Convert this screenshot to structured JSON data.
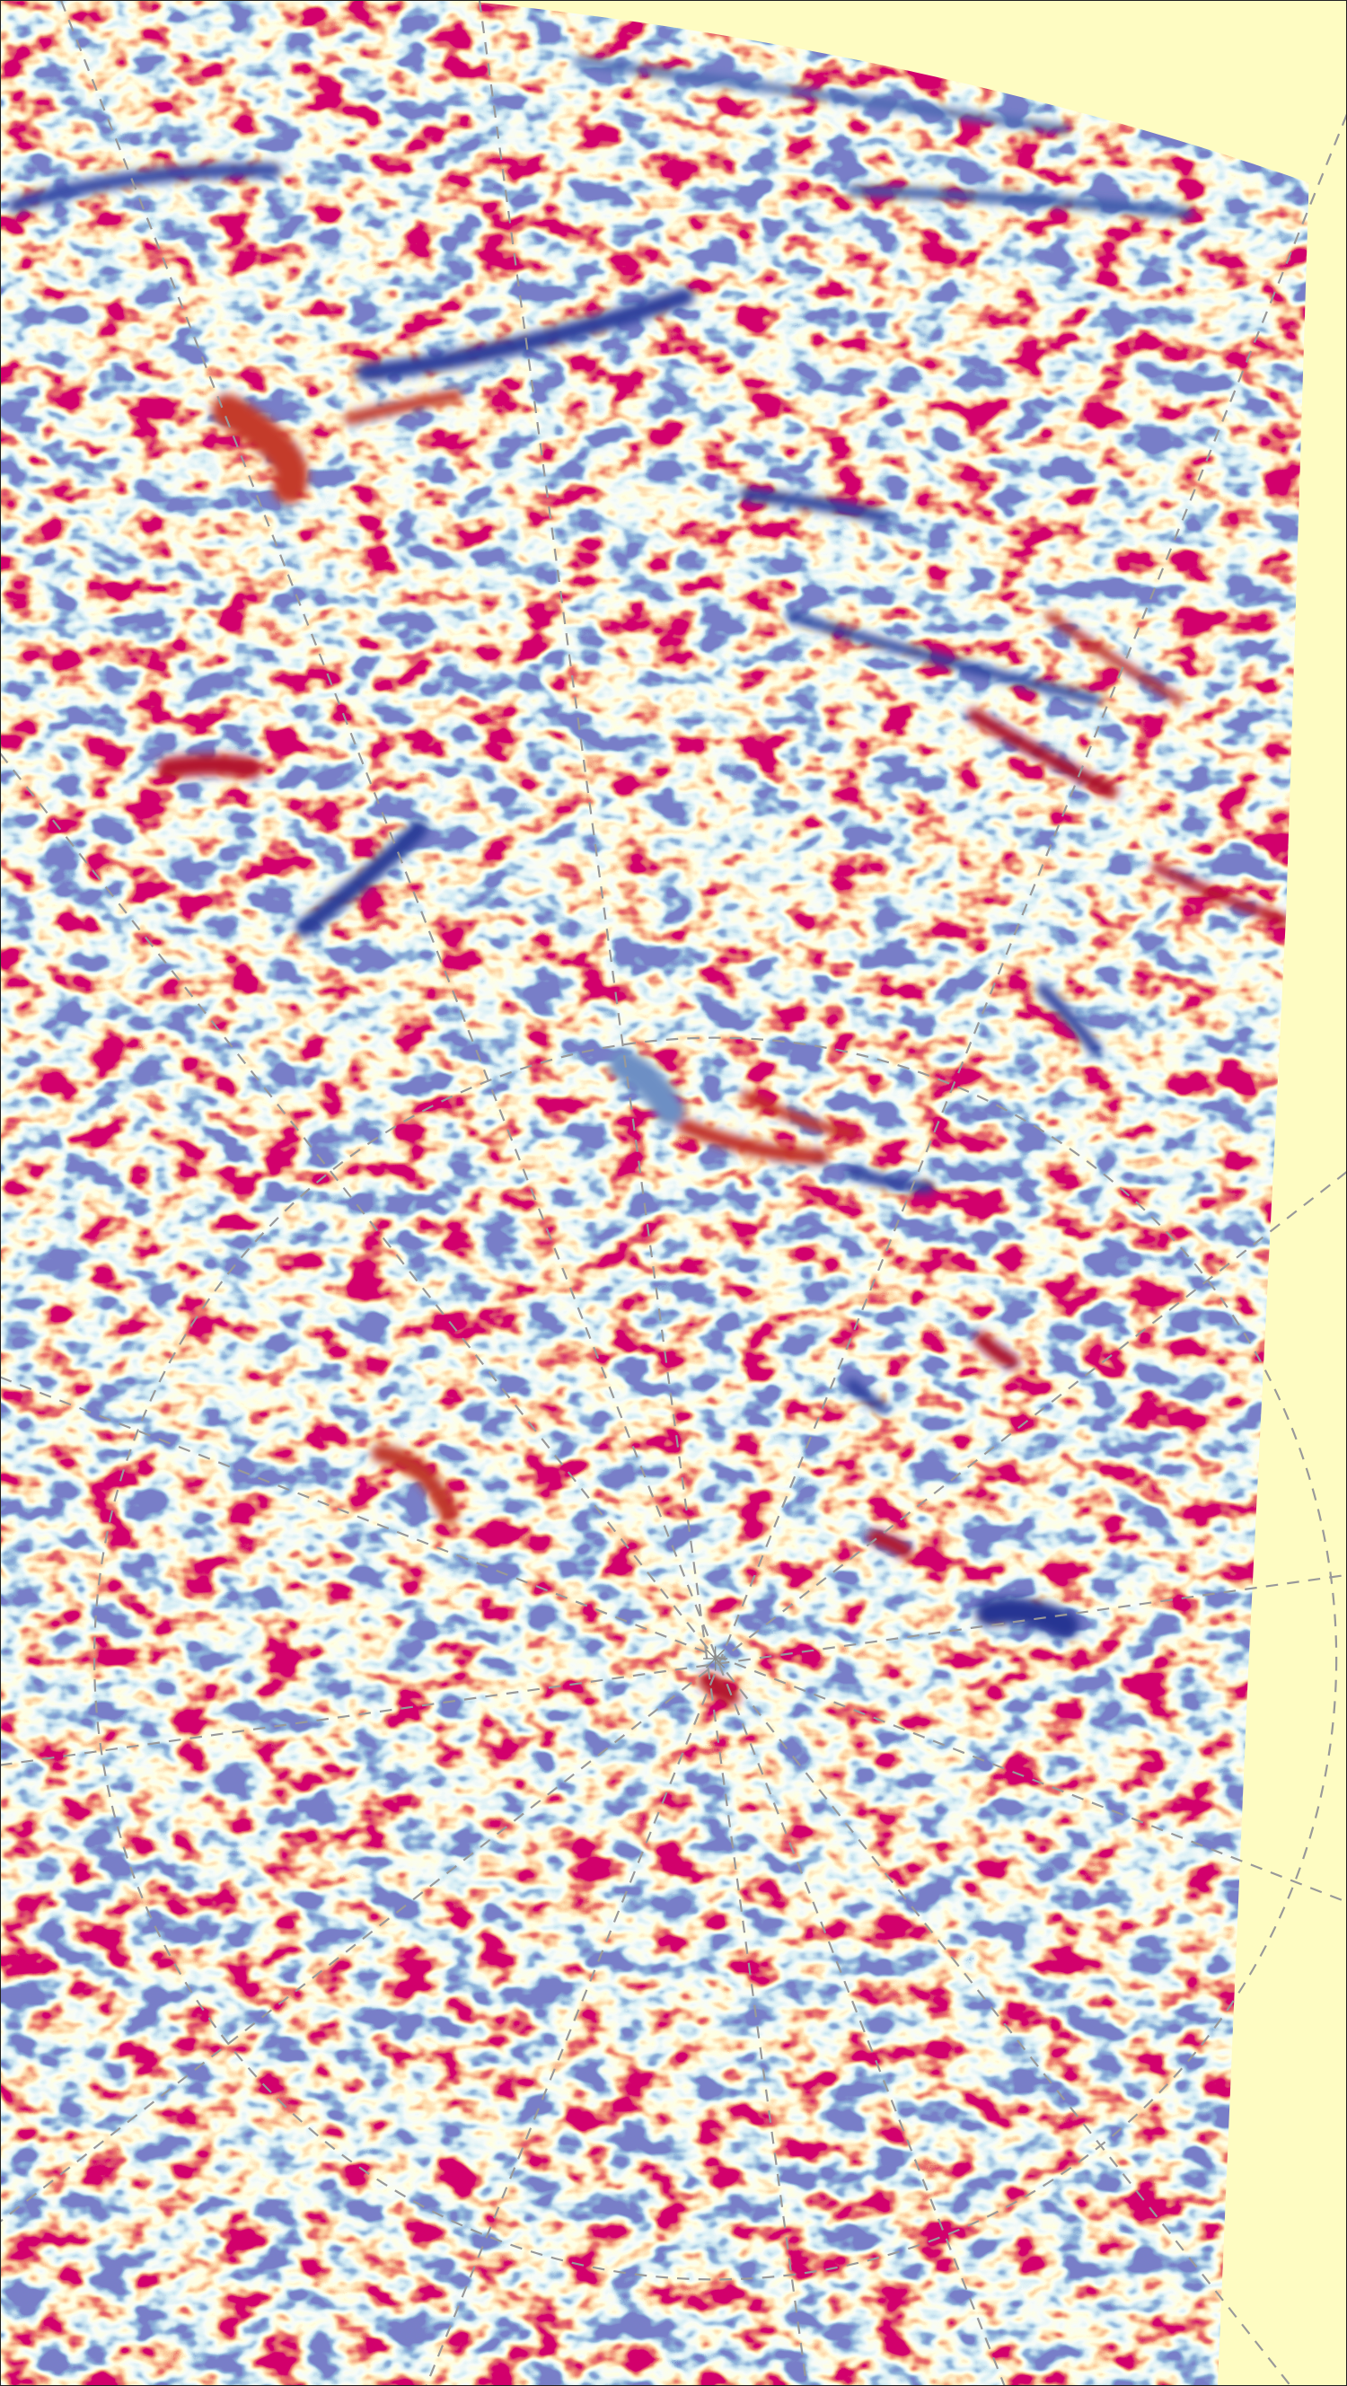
{
  "figure": {
    "type": "polar-projected scalar field map",
    "colormap": [
      "#313695",
      "#4575b4",
      "#abd9e9",
      "#ffffbf",
      "#fdae61",
      "#d73027",
      "#a50026"
    ],
    "background_color": "#fefcc2",
    "grid": {
      "radial_lines": true,
      "circle": true,
      "line_style": "dashed",
      "color": "#9a9a9a"
    },
    "center_marker": "star-burst"
  }
}
